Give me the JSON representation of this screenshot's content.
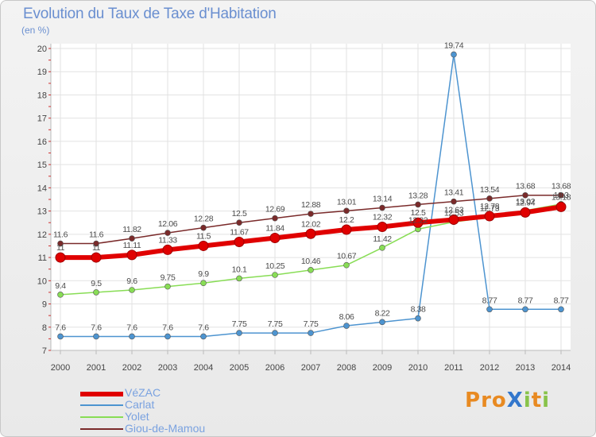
{
  "chart_data": {
    "type": "line",
    "title": "Evolution du Taux de Taxe d'Habitation",
    "subtitle": "(en %)",
    "ylim": [
      7,
      20
    ],
    "yticks": [
      7,
      8,
      9,
      10,
      11,
      12,
      13,
      14,
      15,
      16,
      17,
      18,
      19,
      20
    ],
    "x": [
      2000,
      2001,
      2002,
      2003,
      2004,
      2005,
      2006,
      2007,
      2008,
      2009,
      2010,
      2011,
      2012,
      2013,
      2014
    ],
    "grid": true,
    "legend_position": "bottom-left",
    "series": [
      {
        "name": "VéZAC",
        "color": "#e00000",
        "values": [
          11,
          11,
          11.11,
          11.33,
          11.5,
          11.67,
          11.84,
          12.02,
          12.2,
          12.32,
          12.5,
          12.63,
          12.78,
          12.94,
          13.18
        ],
        "labels": [
          "11",
          "11",
          "11.11",
          "11.33",
          "11.5",
          "11.67",
          "11.84",
          "12.02",
          "12.2",
          "12.32",
          "12.5",
          "12.63",
          "12.78",
          "12.94",
          "13.18"
        ]
      },
      {
        "name": "Carlat",
        "color": "#4d94d0",
        "values": [
          7.6,
          7.6,
          7.6,
          7.6,
          7.6,
          7.75,
          7.75,
          7.75,
          8.06,
          8.22,
          8.38,
          19.74,
          8.77,
          8.77,
          8.77
        ],
        "labels": [
          "7.6",
          "7.6",
          "7.6",
          "7.6",
          "7.6",
          "7.75",
          "7.75",
          "7.75",
          "8.06",
          "8.22",
          "8.38",
          "19.74",
          "8.77",
          "8.77",
          "8.77"
        ]
      },
      {
        "name": "Yolet",
        "color": "#88dd55",
        "values": [
          9.4,
          9.5,
          9.6,
          9.75,
          9.9,
          10.1,
          10.25,
          10.46,
          10.67,
          11.42,
          12.22,
          12.53,
          12.73,
          13.02,
          13.3
        ],
        "labels": [
          "9.4",
          "9.5",
          "9.6",
          "9.75",
          "9.9",
          "10.1",
          "10.25",
          "10.46",
          "10.67",
          "11.42",
          "12.22",
          "12.53",
          "12.73",
          "13.02",
          "13.3"
        ]
      },
      {
        "name": "Giou-de-Mamou",
        "color": "#7a2a2a",
        "values": [
          11.6,
          11.6,
          11.82,
          12.06,
          12.28,
          12.5,
          12.69,
          12.88,
          13.01,
          13.14,
          13.28,
          13.41,
          13.54,
          13.68,
          13.68
        ],
        "labels": [
          "11.6",
          "11.6",
          "11.82",
          "12.06",
          "12.28",
          "12.5",
          "12.69",
          "12.88",
          "13.01",
          "13.14",
          "13.28",
          "13.41",
          "13.54",
          "13.68",
          "13.68"
        ]
      }
    ]
  },
  "logo": {
    "text": "ProXiti",
    "colors": [
      "#e88a22",
      "#e88a22",
      "#e88a22",
      "#3377cc",
      "#88c34a",
      "#e88a22",
      "#88c34a"
    ]
  }
}
